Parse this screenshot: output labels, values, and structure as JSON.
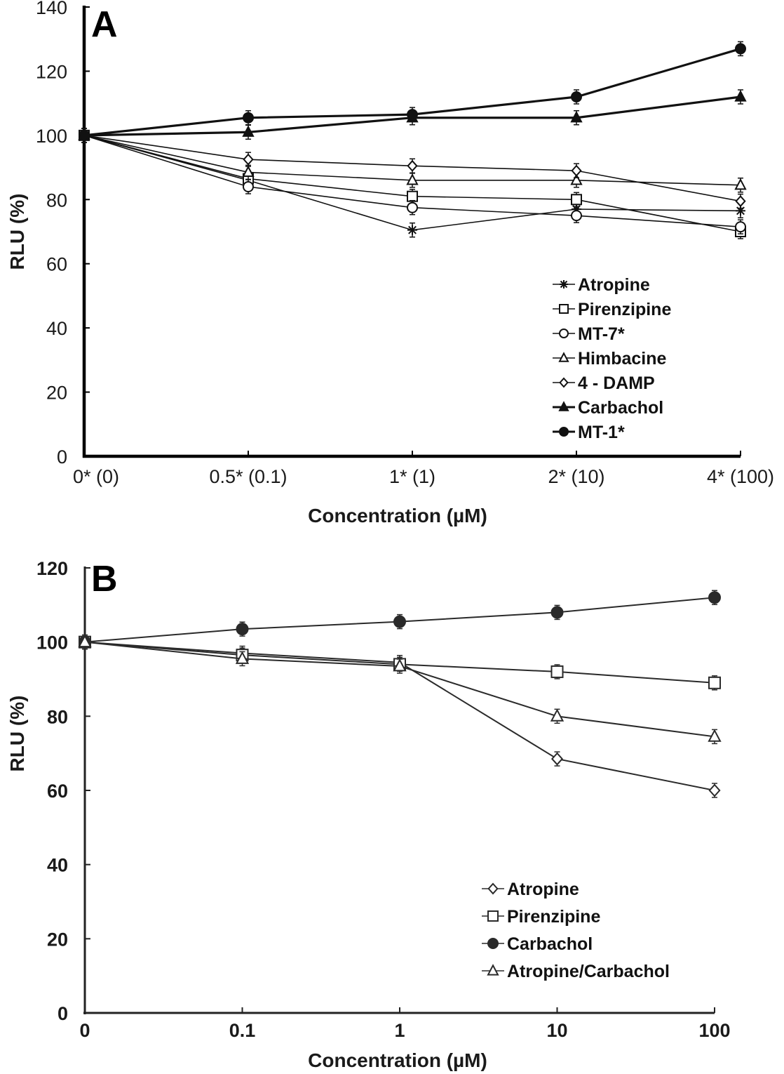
{
  "chart_data": [
    {
      "panel": "A",
      "type": "line",
      "title": "",
      "xlabel": "Concentration (µM)",
      "ylabel": "RLU (%)",
      "ylim": [
        0,
        140
      ],
      "yticks": [
        0,
        20,
        40,
        60,
        80,
        100,
        120,
        140
      ],
      "categories": [
        "0* (0)",
        "0.5* (0.1)",
        "1* (1)",
        "2* (10)",
        "4* (100)"
      ],
      "grid": false,
      "legend_position": "bottom-right",
      "series": [
        {
          "name": "Atropine",
          "marker": "asterisk",
          "filled": false,
          "bold": false,
          "values": [
            100,
            86,
            70.5,
            77,
            76.5
          ]
        },
        {
          "name": "Pirenzipine",
          "marker": "square",
          "filled": false,
          "bold": false,
          "values": [
            100,
            86.5,
            81,
            80,
            70
          ]
        },
        {
          "name": "MT-7*",
          "marker": "circle",
          "filled": false,
          "bold": false,
          "values": [
            100,
            84,
            77.5,
            75,
            71.5
          ]
        },
        {
          "name": "Himbacine",
          "marker": "triangle",
          "filled": false,
          "bold": false,
          "values": [
            100,
            88.5,
            86,
            86,
            84.5
          ]
        },
        {
          "name": "4 - DAMP",
          "marker": "diamond",
          "filled": false,
          "bold": false,
          "values": [
            100,
            92.5,
            90.5,
            89,
            79.5
          ]
        },
        {
          "name": "Carbachol",
          "marker": "triangle",
          "filled": true,
          "bold": true,
          "values": [
            100,
            101,
            105.5,
            105.5,
            112
          ]
        },
        {
          "name": "MT-1*",
          "marker": "circle",
          "filled": true,
          "bold": true,
          "values": [
            100,
            105.5,
            106.5,
            112,
            127
          ]
        }
      ]
    },
    {
      "panel": "B",
      "type": "line",
      "title": "",
      "xlabel": "Concentration (µM)",
      "ylabel": "RLU (%)",
      "ylim": [
        0,
        120
      ],
      "yticks": [
        0,
        20,
        40,
        60,
        80,
        100,
        120
      ],
      "categories": [
        "0",
        "0.1",
        "1",
        "10",
        "100"
      ],
      "grid": false,
      "legend_position": "bottom-right",
      "series": [
        {
          "name": "Atropine",
          "marker": "diamond",
          "filled": false,
          "values": [
            100,
            97,
            94.5,
            68.5,
            60
          ]
        },
        {
          "name": "Pirenzipine",
          "marker": "square",
          "filled": false,
          "values": [
            100,
            96.5,
            94,
            92,
            89
          ]
        },
        {
          "name": "Carbachol",
          "marker": "circle",
          "filled": true,
          "values": [
            100,
            103.5,
            105.5,
            108,
            112
          ]
        },
        {
          "name": "Atropine/Carbachol",
          "marker": "triangle",
          "filled": false,
          "values": [
            100,
            95.5,
            93.5,
            80,
            74.5
          ]
        }
      ]
    }
  ]
}
